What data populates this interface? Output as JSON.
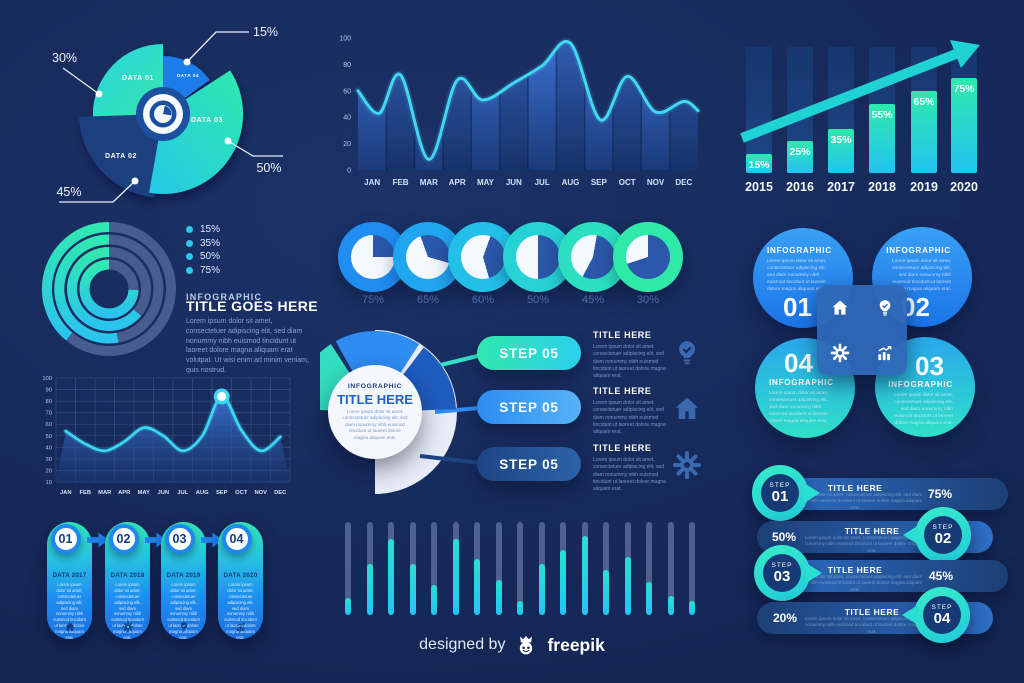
{
  "colors": {
    "background": "#16295a",
    "cyan": "#29d9f2",
    "teal": "#2ee9b4",
    "blue": "#2196f3",
    "dark_bar": "#1d4077",
    "muted_text": "#6c8cc9",
    "white": "#ffffff"
  },
  "text": {
    "infographic": "INFOGRAPHIC",
    "title_goes_here": "TITLE GOES HERE",
    "title_here": "TITLE HERE",
    "lorem_short": "Lorem ipsum dolor sit amet, consectetuer adipiscing elit, sed diam nonummy nibh euismod tincidunt ut laoreet dolore magna aliquam erat.",
    "lorem_tiny": "Lorem ipsum dolor sit amet, consectetuer adipiscing elit, sed diam nonummy nibh euismod tincidunt ut laoreet dolore magna aliquam erat volutpat. Ut wisi enim ad minim veniam, quis nostrud."
  },
  "months": [
    "JAN",
    "FEB",
    "MAR",
    "APR",
    "MAY",
    "JUN",
    "JUL",
    "AUG",
    "SEP",
    "OCT",
    "NOV",
    "DEC"
  ],
  "chart_data": [
    {
      "id": "segmented-pie",
      "type": "pie",
      "slices": [
        {
          "label": "DATA 01",
          "value": 30,
          "pct": "30%"
        },
        {
          "label": "DATA 04",
          "value": 15,
          "pct": "15%"
        },
        {
          "label": "DATA 03",
          "value": 50,
          "pct": "50%"
        },
        {
          "label": "DATA 02",
          "value": 45,
          "pct": "45%"
        }
      ]
    },
    {
      "id": "monthly-area",
      "type": "area",
      "x": [
        "JAN",
        "FEB",
        "MAR",
        "APR",
        "MAY",
        "JUN",
        "JUL",
        "AUG",
        "SEP",
        "OCT",
        "NOV",
        "DEC"
      ],
      "values": [
        58,
        72,
        8,
        68,
        53,
        67,
        80,
        96,
        38,
        71,
        44,
        52
      ],
      "curve": [
        [
          0,
          60
        ],
        [
          0.75,
          43
        ],
        [
          1.5,
          72
        ],
        [
          2.5,
          8
        ],
        [
          3.5,
          68
        ],
        [
          4.4,
          53
        ],
        [
          5.5,
          66
        ],
        [
          6.5,
          79
        ],
        [
          7.5,
          96
        ],
        [
          8.55,
          38
        ],
        [
          9.5,
          71
        ],
        [
          10.5,
          44
        ],
        [
          11.5,
          52
        ],
        [
          12,
          45
        ]
      ],
      "ylim": [
        0,
        100
      ],
      "yticks": [
        0,
        20,
        40,
        60,
        80,
        100
      ],
      "grid": false,
      "legend": "none"
    },
    {
      "id": "yearly-bars",
      "type": "bar",
      "categories": [
        "2015",
        "2016",
        "2017",
        "2018",
        "2019",
        "2020"
      ],
      "values": [
        15,
        25,
        35,
        55,
        65,
        75
      ],
      "labels": [
        "15%",
        "25%",
        "35%",
        "55%",
        "65%",
        "75%"
      ],
      "ylim": [
        0,
        100
      ],
      "annotation": "upward trend arrow"
    },
    {
      "id": "concentric-rings",
      "type": "pie",
      "subtype": "concentric-rings",
      "values": [
        15,
        35,
        50,
        75
      ],
      "legend": [
        "15%",
        "35%",
        "50%",
        "75%"
      ],
      "arc_degrees": [
        140,
        190,
        230,
        268
      ]
    },
    {
      "id": "pie-badge-row",
      "type": "pie",
      "subtype": "pie-row",
      "values": [
        75,
        65,
        60,
        50,
        45,
        30
      ],
      "labels": [
        "75%",
        "65%",
        "60%",
        "50%",
        "45%",
        "30%"
      ]
    },
    {
      "id": "monthly-line",
      "type": "line",
      "x": [
        "JAN",
        "FEB",
        "MAR",
        "APR",
        "MAY",
        "JUN",
        "JUL",
        "AUG",
        "SEP",
        "OCT",
        "NOV",
        "DEC"
      ],
      "values": [
        54,
        43,
        37,
        45,
        57,
        50,
        37,
        50,
        84,
        55,
        37,
        49
      ],
      "highlight": {
        "x": "SEP",
        "value": 84
      },
      "ylim": [
        10,
        100
      ],
      "yticks": [
        10,
        20,
        30,
        40,
        50,
        60,
        70,
        80,
        90,
        100
      ],
      "grid": true
    },
    {
      "id": "mini-progress-bars",
      "type": "bar",
      "values": [
        18,
        55,
        82,
        55,
        32,
        82,
        60,
        38,
        15,
        55,
        70,
        85,
        48,
        62,
        35,
        20,
        15
      ],
      "ylim": [
        0,
        100
      ]
    },
    {
      "id": "step-percentages",
      "type": "table",
      "rows": [
        [
          "STEP 01",
          "TITLE HERE",
          "75%"
        ],
        [
          "STEP 02",
          "TITLE HERE",
          "50%"
        ],
        [
          "STEP 03",
          "TITLE HERE",
          "45%"
        ],
        [
          "STEP 04",
          "TITLE HERE",
          "20%"
        ]
      ]
    }
  ],
  "sections": {
    "rings": {
      "legend": [
        "15%",
        "35%",
        "50%",
        "75%"
      ]
    },
    "pies": {
      "labels": [
        "75%",
        "65%",
        "60%",
        "50%",
        "45%",
        "30%"
      ]
    },
    "clover": {
      "items": [
        {
          "num": "01",
          "icon": "home-icon"
        },
        {
          "num": "02",
          "icon": "bulb-icon"
        },
        {
          "num": "04",
          "icon": "gear-icon"
        },
        {
          "num": "03",
          "icon": "chart-icon"
        }
      ]
    },
    "steps": {
      "pills": [
        "STEP 05",
        "STEP 05",
        "STEP 05"
      ],
      "entries": [
        {
          "title": "TITLE HERE",
          "icon": "bulb-icon"
        },
        {
          "title": "TITLE HERE",
          "icon": "home-icon"
        },
        {
          "title": "TITLE HERE",
          "icon": "gear-icon"
        }
      ]
    },
    "capsules": {
      "items": [
        {
          "num": "01",
          "title": "DATA 2017",
          "icon": "home-icon"
        },
        {
          "num": "02",
          "title": "DATA 2018",
          "icon": "gear-icon"
        },
        {
          "num": "03",
          "title": "DATA 2019",
          "icon": "bulb-icon"
        },
        {
          "num": "04",
          "title": "DATA 2020",
          "icon": "chart-icon"
        }
      ]
    },
    "step_rows": {
      "rows": [
        {
          "step_word": "STEP",
          "num": "01",
          "title": "TITLE HERE",
          "percent": "75%",
          "badge": "left"
        },
        {
          "step_word": "STEP",
          "num": "02",
          "title": "TITLE HERE",
          "percent": "50%",
          "badge": "right"
        },
        {
          "step_word": "STEP",
          "num": "03",
          "title": "TITLE HERE",
          "percent": "45%",
          "badge": "left"
        },
        {
          "step_word": "STEP",
          "num": "04",
          "title": "TITLE HERE",
          "percent": "20%",
          "badge": "right"
        }
      ]
    }
  },
  "footer": {
    "designed_by": "designed by",
    "brand": "freepik"
  }
}
